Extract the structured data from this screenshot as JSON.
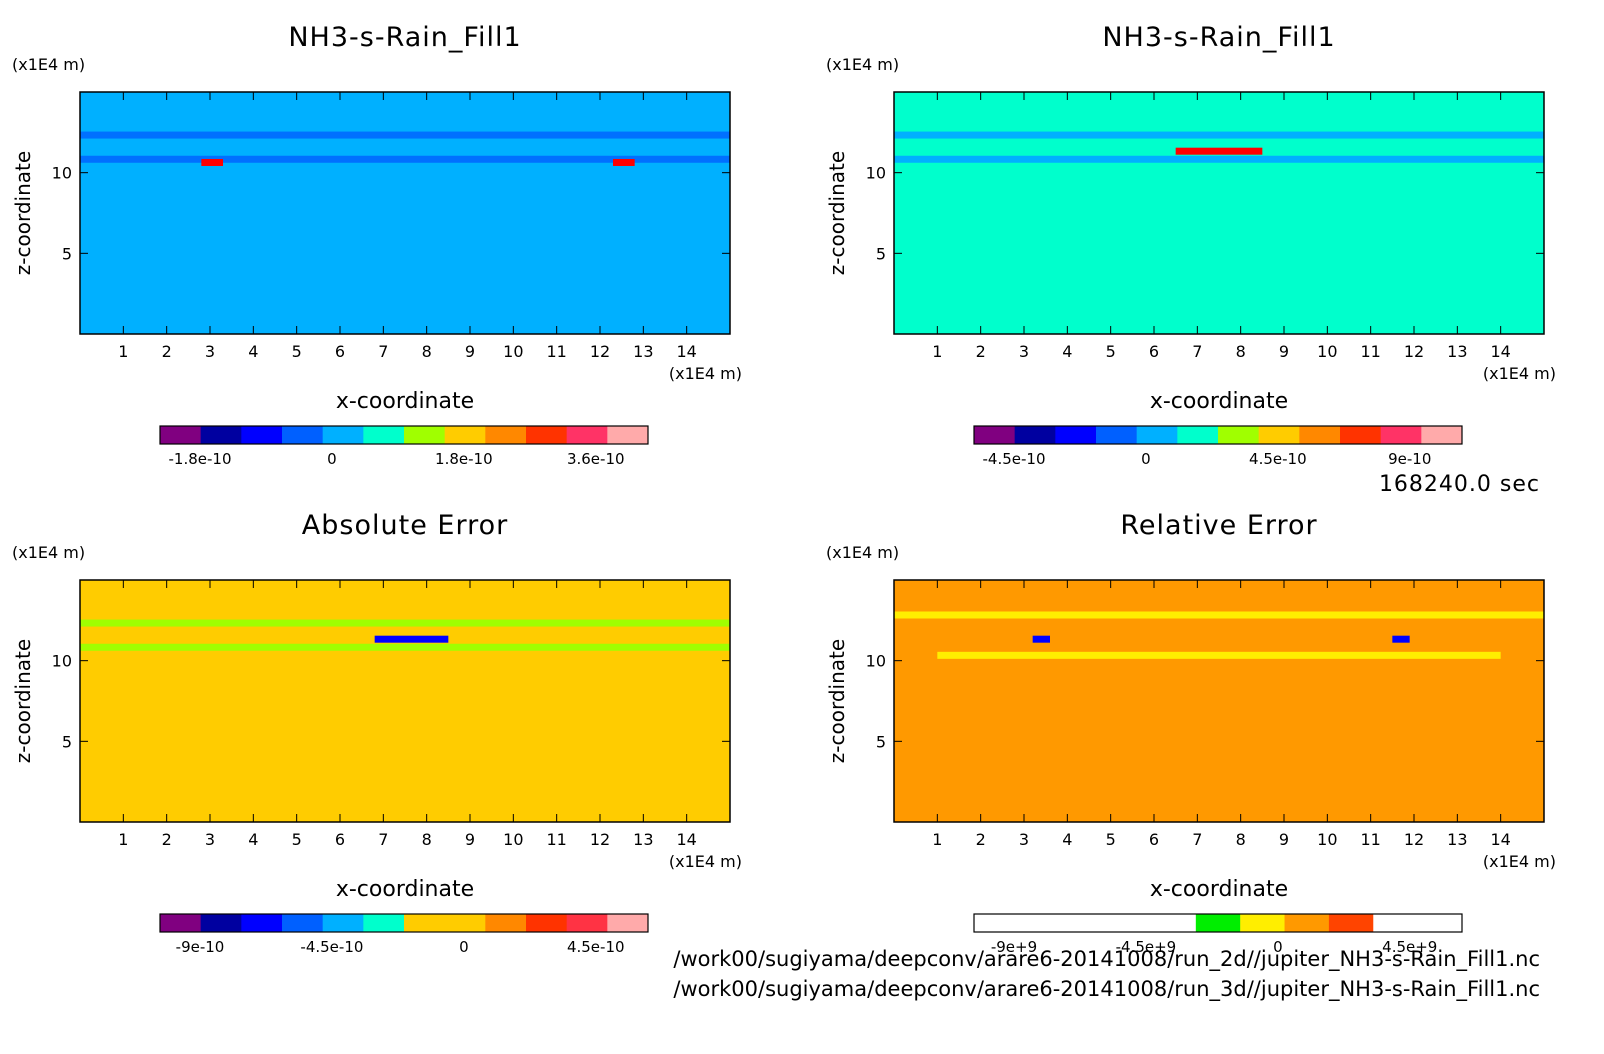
{
  "chart_data": [
    {
      "type": "heatmap",
      "title": "NH3-s-Rain_Fill1",
      "xlabel": "x-coordinate",
      "ylabel": "z-coordinate",
      "x_unit": "(x1E4 m)",
      "y_unit": "(x1E4 m)",
      "xlim": [
        0,
        15
      ],
      "ylim": [
        0,
        15
      ],
      "x_ticks": [
        "1",
        "2",
        "3",
        "4",
        "5",
        "6",
        "7",
        "8",
        "9",
        "10",
        "11",
        "12",
        "13",
        "14"
      ],
      "y_ticks": [
        "5",
        "10"
      ],
      "background_color": "#00b0ff",
      "features": [
        {
          "z": 12.3,
          "x_from": 0,
          "x_to": 15,
          "color": "#0070ff"
        },
        {
          "z": 10.8,
          "x_from": 0,
          "x_to": 15,
          "color": "#0070ff"
        },
        {
          "z": 10.6,
          "x_from": 2.8,
          "x_to": 3.3,
          "color": "#ff0000"
        },
        {
          "z": 10.6,
          "x_from": 12.3,
          "x_to": 12.8,
          "color": "#ff0000"
        }
      ],
      "colorbar": {
        "colors": [
          "#800080",
          "#0000a0",
          "#0000ff",
          "#0060ff",
          "#00b0ff",
          "#00ffcc",
          "#a0ff00",
          "#ffcc00",
          "#ff8800",
          "#ff3300",
          "#ff3366",
          "#ffaaaa"
        ],
        "tick_labels": [
          "-1.8e-10",
          "0",
          "1.8e-10",
          "3.6e-10"
        ]
      }
    },
    {
      "type": "heatmap",
      "title": "NH3-s-Rain_Fill1",
      "xlabel": "x-coordinate",
      "ylabel": "z-coordinate",
      "x_unit": "(x1E4 m)",
      "y_unit": "(x1E4 m)",
      "xlim": [
        0,
        15
      ],
      "ylim": [
        0,
        15
      ],
      "x_ticks": [
        "1",
        "2",
        "3",
        "4",
        "5",
        "6",
        "7",
        "8",
        "9",
        "10",
        "11",
        "12",
        "13",
        "14"
      ],
      "y_ticks": [
        "5",
        "10"
      ],
      "background_color": "#00ffcc",
      "features": [
        {
          "z": 12.3,
          "x_from": 0,
          "x_to": 15,
          "color": "#00b0ff"
        },
        {
          "z": 10.8,
          "x_from": 0,
          "x_to": 15,
          "color": "#00b0ff"
        },
        {
          "z": 11.3,
          "x_from": 6.5,
          "x_to": 8.5,
          "color": "#ff0000"
        }
      ],
      "colorbar": {
        "colors": [
          "#800080",
          "#0000a0",
          "#0000ff",
          "#0060ff",
          "#00b0ff",
          "#00ffcc",
          "#a0ff00",
          "#ffcc00",
          "#ff8800",
          "#ff3300",
          "#ff3366",
          "#ffaaaa"
        ],
        "tick_labels": [
          "-4.5e-10",
          "0",
          "4.5e-10",
          "9e-10"
        ]
      }
    },
    {
      "type": "heatmap",
      "title": "Absolute Error",
      "xlabel": "x-coordinate",
      "ylabel": "z-coordinate",
      "x_unit": "(x1E4 m)",
      "y_unit": "(x1E4 m)",
      "xlim": [
        0,
        15
      ],
      "ylim": [
        0,
        15
      ],
      "x_ticks": [
        "1",
        "2",
        "3",
        "4",
        "5",
        "6",
        "7",
        "8",
        "9",
        "10",
        "11",
        "12",
        "13",
        "14"
      ],
      "y_ticks": [
        "5",
        "10"
      ],
      "background_color": "#ffcc00",
      "features": [
        {
          "z": 12.3,
          "x_from": 0,
          "x_to": 15,
          "color": "#a0ff00"
        },
        {
          "z": 10.8,
          "x_from": 0,
          "x_to": 15,
          "color": "#a0ff00"
        },
        {
          "z": 11.3,
          "x_from": 6.8,
          "x_to": 8.5,
          "color": "#0000ff"
        }
      ],
      "colorbar": {
        "colors": [
          "#800080",
          "#0000a0",
          "#0000ff",
          "#0060ff",
          "#00b0ff",
          "#00ffcc",
          "#ffcc00",
          "#ffcc00",
          "#ff8800",
          "#ff3300",
          "#ff3344",
          "#ffaaaa"
        ],
        "tick_labels": [
          "-9e-10",
          "-4.5e-10",
          "0",
          "4.5e-10"
        ]
      }
    },
    {
      "type": "heatmap",
      "title": "Relative Error",
      "xlabel": "x-coordinate",
      "ylabel": "z-coordinate",
      "x_unit": "(x1E4 m)",
      "y_unit": "(x1E4 m)",
      "xlim": [
        0,
        15
      ],
      "ylim": [
        0,
        15
      ],
      "x_ticks": [
        "1",
        "2",
        "3",
        "4",
        "5",
        "6",
        "7",
        "8",
        "9",
        "10",
        "11",
        "12",
        "13",
        "14"
      ],
      "y_ticks": [
        "5",
        "10"
      ],
      "background_color": "#ff9900",
      "features": [
        {
          "z": 12.8,
          "x_from": 0,
          "x_to": 15,
          "color": "#ffee00"
        },
        {
          "z": 10.3,
          "x_from": 1,
          "x_to": 14,
          "color": "#ffee00"
        },
        {
          "z": 11.3,
          "x_from": 3.2,
          "x_to": 3.6,
          "color": "#0000ff"
        },
        {
          "z": 11.3,
          "x_from": 11.5,
          "x_to": 11.9,
          "color": "#0000ff"
        }
      ],
      "colorbar": {
        "colors": [
          "#ffffff",
          "#ffffff",
          "#ffffff",
          "#ffffff",
          "#ffffff",
          "#00ee00",
          "#ffee00",
          "#ff9900",
          "#ff4400",
          "#ffffff",
          "#ffffff"
        ],
        "tick_labels": [
          "-9e+9",
          "-4.5e+9",
          "0",
          "4.5e+9"
        ]
      }
    }
  ],
  "annotations": {
    "time": "168240.0 sec",
    "file1": "/work00/sugiyama/deepconv/arare6-20141008/run_2d//jupiter_NH3-s-Rain_Fill1.nc",
    "file2": "/work00/sugiyama/deepconv/arare6-20141008/run_3d//jupiter_NH3-s-Rain_Fill1.nc"
  }
}
